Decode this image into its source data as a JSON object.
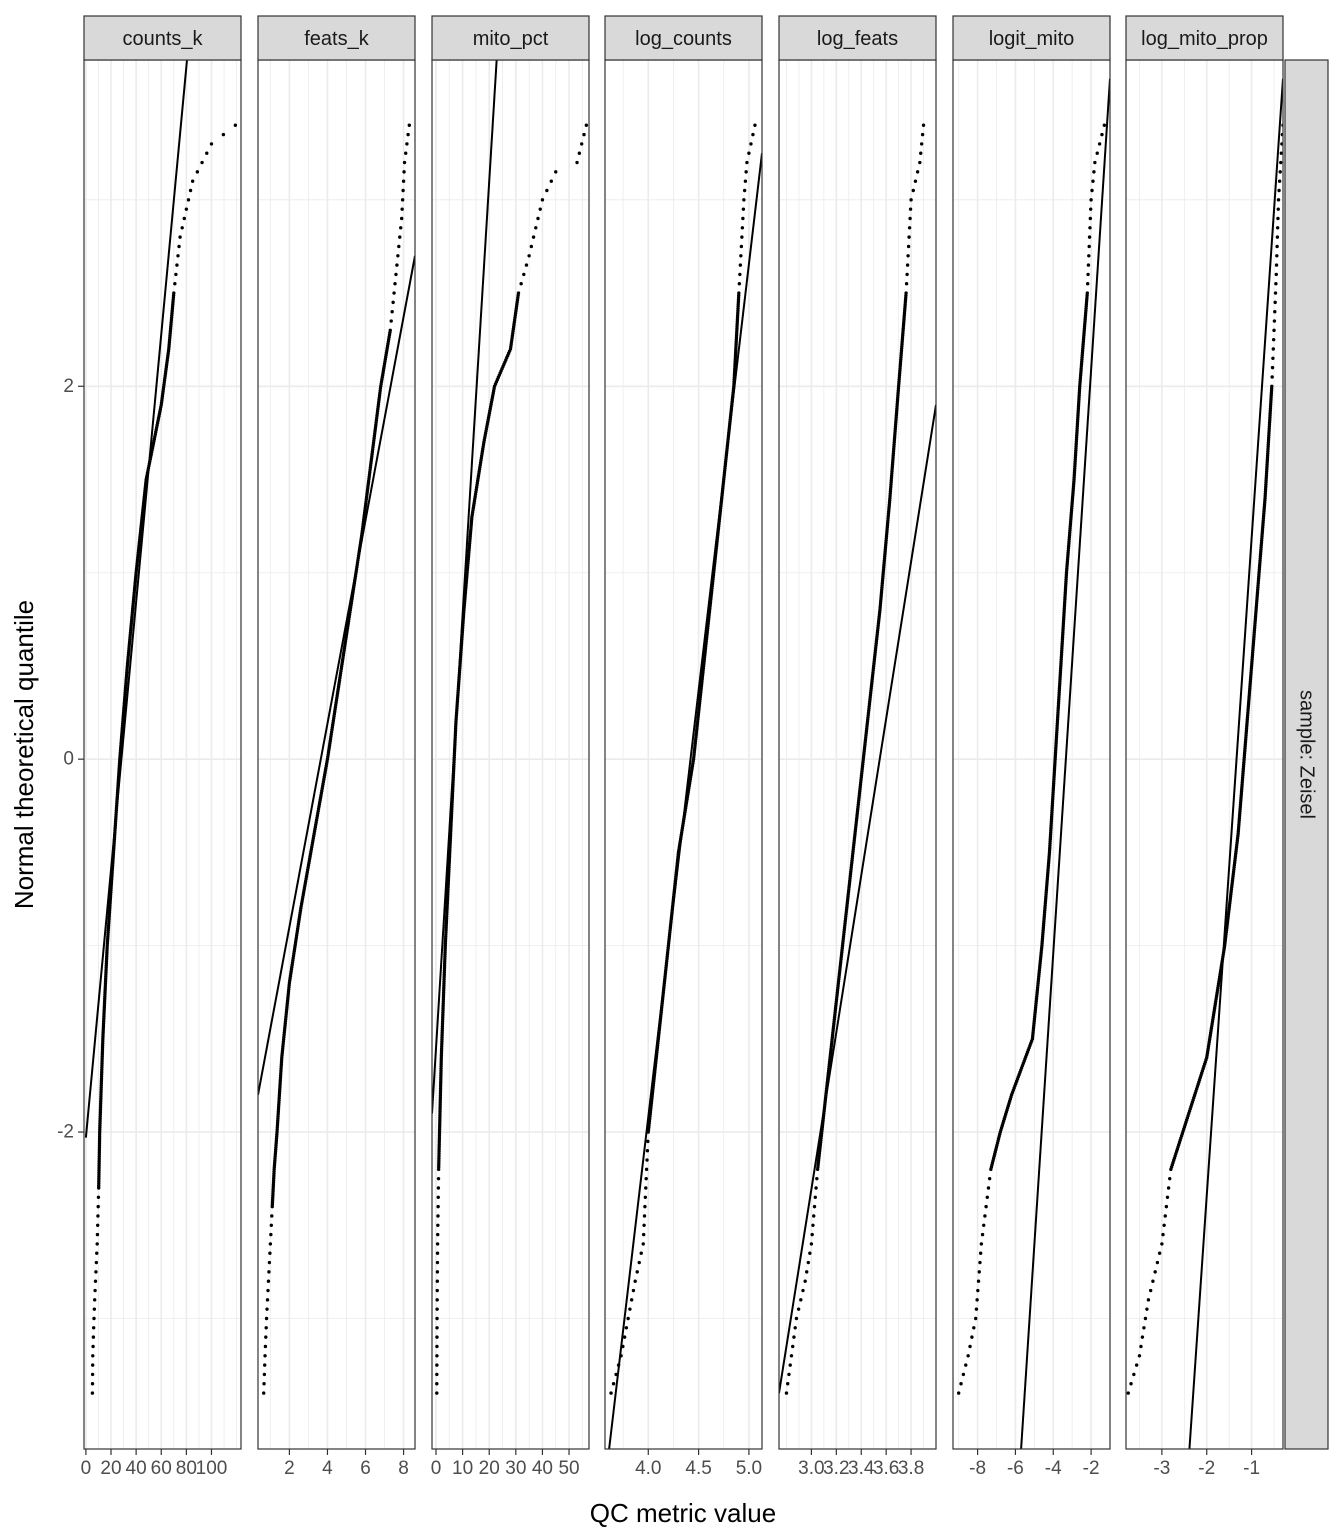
{
  "chart_data": {
    "type": "scatter",
    "subtype": "faceted normal Q-Q plot with reference lines",
    "xlabel": "QC metric value",
    "ylabel": "Normal theoretical quantile",
    "row_strip": "sample: Zeisel",
    "ylim": [
      -3.7,
      3.75
    ],
    "y_ticks": [
      -2,
      0,
      2
    ],
    "y_tick_labels": [
      "-2",
      "0",
      "2"
    ],
    "grid": true,
    "panels": [
      {
        "name": "counts_k",
        "xlim": [
          -1.5,
          123.5
        ],
        "x_ticks": [
          0,
          20,
          40,
          60,
          80,
          100
        ],
        "x_tick_labels": [
          "0",
          "20",
          "40",
          "60",
          "80",
          "100"
        ],
        "ref_line": [
          [
            0,
            -2.03
          ],
          [
            80.5,
            3.75
          ]
        ],
        "qq": [
          [
            5.2,
            -3.4
          ],
          [
            5.5,
            -3.2
          ],
          [
            6.2,
            -3.05
          ],
          [
            7.0,
            -2.9
          ],
          [
            8.0,
            -2.75
          ],
          [
            9.0,
            -2.6
          ],
          [
            10.2,
            -2.3
          ],
          [
            11.0,
            -2.0
          ],
          [
            13.5,
            -1.5
          ],
          [
            17.0,
            -1.0
          ],
          [
            22.0,
            -0.5
          ],
          [
            27.0,
            0.0
          ],
          [
            33.0,
            0.5
          ],
          [
            40.0,
            1.0
          ],
          [
            48.0,
            1.5
          ],
          [
            60.0,
            1.9
          ],
          [
            66.0,
            2.2
          ],
          [
            70.0,
            2.5
          ],
          [
            75.0,
            2.8
          ],
          [
            85.0,
            3.1
          ],
          [
            100.0,
            3.3
          ],
          [
            119.0,
            3.4
          ]
        ]
      },
      {
        "name": "feats_k",
        "xlim": [
          0.35,
          8.6
        ],
        "x_ticks": [
          2,
          4,
          6,
          8
        ],
        "x_tick_labels": [
          "2",
          "4",
          "6",
          "8"
        ],
        "ref_line": [
          [
            0.35,
            -1.8
          ],
          [
            8.6,
            2.7
          ]
        ],
        "qq": [
          [
            0.65,
            -3.4
          ],
          [
            0.72,
            -3.2
          ],
          [
            0.8,
            -3.0
          ],
          [
            0.9,
            -2.8
          ],
          [
            1.0,
            -2.6
          ],
          [
            1.1,
            -2.4
          ],
          [
            1.2,
            -2.2
          ],
          [
            1.35,
            -2.0
          ],
          [
            1.6,
            -1.6
          ],
          [
            2.0,
            -1.2
          ],
          [
            2.6,
            -0.8
          ],
          [
            3.3,
            -0.4
          ],
          [
            4.0,
            0.0
          ],
          [
            4.6,
            0.4
          ],
          [
            5.2,
            0.8
          ],
          [
            5.8,
            1.2
          ],
          [
            6.3,
            1.6
          ],
          [
            6.8,
            2.0
          ],
          [
            7.3,
            2.3
          ],
          [
            7.6,
            2.6
          ],
          [
            7.9,
            2.9
          ],
          [
            8.05,
            3.2
          ],
          [
            8.3,
            3.4
          ]
        ]
      },
      {
        "name": "mito_pct",
        "xlim": [
          -1.5,
          57.5
        ],
        "x_ticks": [
          0,
          10,
          20,
          30,
          40,
          50
        ],
        "x_tick_labels": [
          "0",
          "10",
          "20",
          "30",
          "40",
          "50"
        ],
        "ref_line": [
          [
            -1.5,
            -1.9
          ],
          [
            22.8,
            3.75
          ]
        ],
        "qq": [
          [
            0.3,
            -3.4
          ],
          [
            0.4,
            -3.0
          ],
          [
            0.6,
            -2.6
          ],
          [
            1.0,
            -2.2
          ],
          [
            2.0,
            -1.6
          ],
          [
            3.5,
            -1.0
          ],
          [
            5.5,
            -0.4
          ],
          [
            7.5,
            0.2
          ],
          [
            10.5,
            0.8
          ],
          [
            13.5,
            1.3
          ],
          [
            18.0,
            1.7
          ],
          [
            22.0,
            2.0
          ],
          [
            28.0,
            2.2
          ],
          [
            31.0,
            2.5
          ],
          [
            35.0,
            2.7
          ],
          [
            40.0,
            3.0
          ],
          [
            45.0,
            3.15
          ],
          [
            53.0,
            3.2
          ],
          [
            56.5,
            3.4
          ]
        ]
      },
      {
        "name": "log_counts",
        "xlim": [
          3.57,
          5.13
        ],
        "x_ticks": [
          4.0,
          4.5,
          5.0
        ],
        "x_tick_labels": [
          "4.0",
          "4.5",
          "5.0"
        ],
        "ref_line": [
          [
            3.6,
            -3.75
          ],
          [
            5.13,
            3.25
          ]
        ],
        "qq": [
          [
            3.63,
            -3.4
          ],
          [
            3.73,
            -3.2
          ],
          [
            3.8,
            -3.0
          ],
          [
            3.87,
            -2.8
          ],
          [
            3.95,
            -2.6
          ],
          [
            4.0,
            -2.0
          ],
          [
            4.1,
            -1.5
          ],
          [
            4.2,
            -1.0
          ],
          [
            4.3,
            -0.5
          ],
          [
            4.45,
            0.0
          ],
          [
            4.55,
            0.5
          ],
          [
            4.65,
            1.0
          ],
          [
            4.75,
            1.5
          ],
          [
            4.85,
            2.0
          ],
          [
            4.9,
            2.5
          ],
          [
            4.95,
            3.0
          ],
          [
            4.98,
            3.2
          ],
          [
            5.06,
            3.4
          ]
        ]
      },
      {
        "name": "log_feats",
        "xlim": [
          2.74,
          4.0
        ],
        "x_ticks": [
          3.0,
          3.2,
          3.4,
          3.6,
          3.8
        ],
        "x_tick_labels": [
          "3.0",
          "3.2",
          "3.4",
          "3.6",
          "3.8"
        ],
        "ref_line": [
          [
            2.74,
            -3.4
          ],
          [
            4.0,
            1.9
          ]
        ],
        "qq": [
          [
            2.8,
            -3.4
          ],
          [
            2.84,
            -3.2
          ],
          [
            2.88,
            -3.0
          ],
          [
            2.95,
            -2.8
          ],
          [
            3.0,
            -2.6
          ],
          [
            3.05,
            -2.2
          ],
          [
            3.15,
            -1.6
          ],
          [
            3.25,
            -1.0
          ],
          [
            3.35,
            -0.4
          ],
          [
            3.45,
            0.2
          ],
          [
            3.55,
            0.8
          ],
          [
            3.63,
            1.4
          ],
          [
            3.7,
            2.0
          ],
          [
            3.76,
            2.5
          ],
          [
            3.8,
            3.0
          ],
          [
            3.87,
            3.2
          ],
          [
            3.9,
            3.4
          ]
        ]
      },
      {
        "name": "logit_mito",
        "xlim": [
          -9.3,
          -1.0
        ],
        "x_ticks": [
          -8,
          -6,
          -4,
          -2
        ],
        "x_tick_labels": [
          "-8",
          "-6",
          "-4",
          "-2"
        ],
        "ref_line": [
          [
            -5.7,
            -3.7
          ],
          [
            -1.0,
            3.65
          ]
        ],
        "qq": [
          [
            -9.0,
            -3.4
          ],
          [
            -8.5,
            -3.2
          ],
          [
            -8.1,
            -3.0
          ],
          [
            -7.8,
            -2.6
          ],
          [
            -7.3,
            -2.2
          ],
          [
            -6.8,
            -2.0
          ],
          [
            -6.2,
            -1.8
          ],
          [
            -5.1,
            -1.5
          ],
          [
            -4.6,
            -1.0
          ],
          [
            -4.2,
            -0.5
          ],
          [
            -3.9,
            0.0
          ],
          [
            -3.6,
            0.5
          ],
          [
            -3.3,
            1.0
          ],
          [
            -2.9,
            1.5
          ],
          [
            -2.6,
            2.0
          ],
          [
            -2.2,
            2.5
          ],
          [
            -2.0,
            3.0
          ],
          [
            -1.8,
            3.2
          ],
          [
            -1.3,
            3.4
          ]
        ]
      },
      {
        "name": "log_mito_prop",
        "xlim": [
          -3.8,
          -0.3
        ],
        "x_ticks": [
          -3,
          -2,
          -1
        ],
        "x_tick_labels": [
          "-3",
          "-2",
          "-1"
        ],
        "ref_line": [
          [
            -2.4,
            -3.75
          ],
          [
            -0.3,
            3.65
          ]
        ],
        "qq": [
          [
            -3.75,
            -3.4
          ],
          [
            -3.5,
            -3.2
          ],
          [
            -3.3,
            -2.9
          ],
          [
            -3.0,
            -2.6
          ],
          [
            -2.8,
            -2.2
          ],
          [
            -2.4,
            -1.9
          ],
          [
            -2.0,
            -1.6
          ],
          [
            -1.6,
            -1.0
          ],
          [
            -1.3,
            -0.4
          ],
          [
            -1.1,
            0.2
          ],
          [
            -0.9,
            0.8
          ],
          [
            -0.7,
            1.4
          ],
          [
            -0.55,
            2.0
          ],
          [
            -0.45,
            2.6
          ],
          [
            -0.4,
            3.0
          ],
          [
            -0.3,
            3.4
          ]
        ]
      }
    ]
  }
}
